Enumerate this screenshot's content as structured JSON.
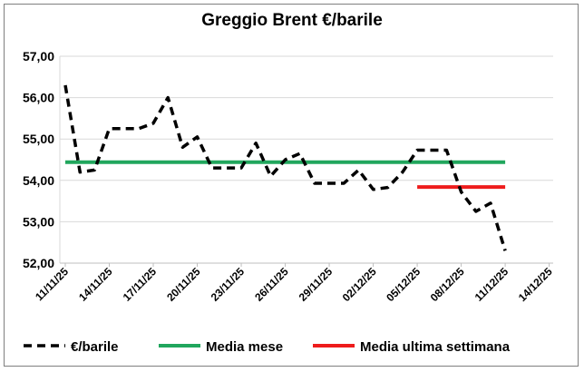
{
  "chart_data": {
    "type": "line",
    "title": "Greggio Brent €/barile",
    "xlabel": "",
    "ylabel": "",
    "x_tick_labels": [
      "11/11/25",
      "14/11/25",
      "17/11/25",
      "20/11/25",
      "23/11/25",
      "26/11/25",
      "29/11/25",
      "02/12/25",
      "05/12/25",
      "08/12/25",
      "11/12/25",
      "14/12/25"
    ],
    "x_range": [
      "11/11/25",
      "14/12/25"
    ],
    "ylim": [
      52.0,
      57.0
    ],
    "y_ticks": [
      "52,00",
      "53,00",
      "54,00",
      "55,00",
      "56,00",
      "57,00"
    ],
    "grid": "horizontal",
    "legend_position": "bottom",
    "series": [
      {
        "name": "€/barile",
        "style": "dashed",
        "color": "#000000",
        "x": [
          "11/11/25",
          "12/11/25",
          "13/11/25",
          "14/11/25",
          "15/11/25",
          "16/11/25",
          "17/11/25",
          "18/11/25",
          "19/11/25",
          "20/11/25",
          "21/11/25",
          "22/11/25",
          "23/11/25",
          "24/11/25",
          "25/11/25",
          "26/11/25",
          "27/11/25",
          "28/11/25",
          "29/11/25",
          "30/11/25",
          "01/12/25",
          "02/12/25",
          "03/12/25",
          "04/12/25",
          "05/12/25",
          "06/12/25",
          "07/12/25",
          "08/12/25",
          "09/12/25",
          "10/12/25",
          "11/12/25"
        ],
        "values": [
          56.3,
          54.2,
          54.25,
          55.25,
          55.25,
          55.25,
          55.38,
          56.0,
          54.8,
          55.05,
          54.3,
          54.3,
          54.3,
          54.9,
          54.1,
          54.5,
          54.65,
          53.93,
          53.93,
          53.93,
          54.25,
          53.78,
          53.83,
          54.2,
          54.73,
          54.73,
          54.73,
          53.72,
          53.25,
          53.45,
          52.3
        ]
      },
      {
        "name": "Media mese",
        "style": "solid",
        "color": "#21a65d",
        "x": [
          "11/11/25",
          "11/12/25"
        ],
        "values": [
          54.44,
          54.44
        ]
      },
      {
        "name": "Media ultima settimana",
        "style": "solid",
        "color": "#ee1c1c",
        "x": [
          "05/12/25",
          "11/12/25"
        ],
        "values": [
          53.84,
          53.84
        ]
      }
    ]
  }
}
